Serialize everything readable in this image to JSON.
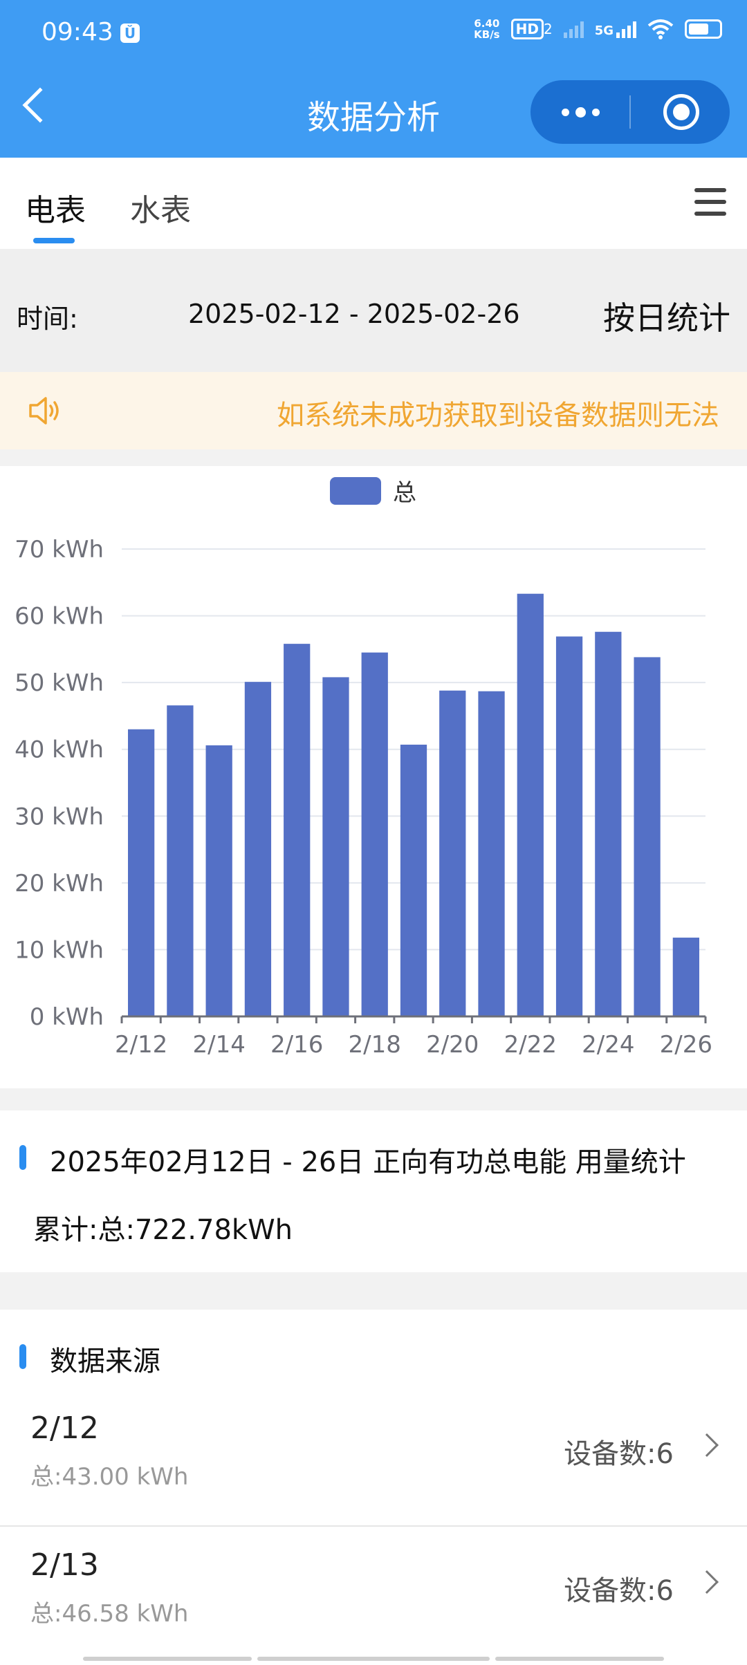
{
  "status": {
    "time": "09:43",
    "alarm_glyph": "Ǔ",
    "net_speed_value": "6.40",
    "net_speed_unit": "KB/s",
    "hd": "HD",
    "hd_sub": "2",
    "network": "5G"
  },
  "header": {
    "title": "数据分析"
  },
  "tabs": [
    {
      "label": "电表"
    },
    {
      "label": "水表"
    }
  ],
  "time_row": {
    "label": "时间:",
    "range": "2025-02-12 - 2025-02-26",
    "mode": "按日统计"
  },
  "notice": {
    "text": "如系统未成功获取到设备数据则无法"
  },
  "chart_data": {
    "type": "bar",
    "legend": [
      {
        "name": "总",
        "color": "#5470c6"
      }
    ],
    "categories": [
      "2/12",
      "2/13",
      "2/14",
      "2/15",
      "2/16",
      "2/17",
      "2/18",
      "2/19",
      "2/20",
      "2/21",
      "2/22",
      "2/23",
      "2/24",
      "2/25",
      "2/26"
    ],
    "x_tick_labels": [
      "2/12",
      "2/14",
      "2/16",
      "2/18",
      "2/20",
      "2/22",
      "2/24",
      "2/26"
    ],
    "series": [
      {
        "name": "总",
        "color": "#5470c6",
        "values": [
          43.0,
          46.58,
          40.6,
          50.1,
          55.8,
          50.8,
          54.5,
          40.7,
          48.8,
          48.7,
          63.3,
          56.9,
          57.6,
          53.8,
          11.8
        ]
      }
    ],
    "y_ticks": [
      "0 kWh",
      "10 kWh",
      "20 kWh",
      "30 kWh",
      "40 kWh",
      "50 kWh",
      "60 kWh",
      "70 kWh"
    ],
    "ylim": [
      0,
      70
    ],
    "grid": true,
    "legend_position": "top-center"
  },
  "summary": {
    "title": "2025年02月12日 - 26日 正向有功总电能 用量统计",
    "total": "累计:总:722.78kWh"
  },
  "source": {
    "title": "数据来源",
    "rows": [
      {
        "date": "2/12",
        "value": "总:43.00 kWh",
        "devices": "设备数:6"
      },
      {
        "date": "2/13",
        "value": "总:46.58 kWh",
        "devices": "设备数:6"
      }
    ]
  }
}
